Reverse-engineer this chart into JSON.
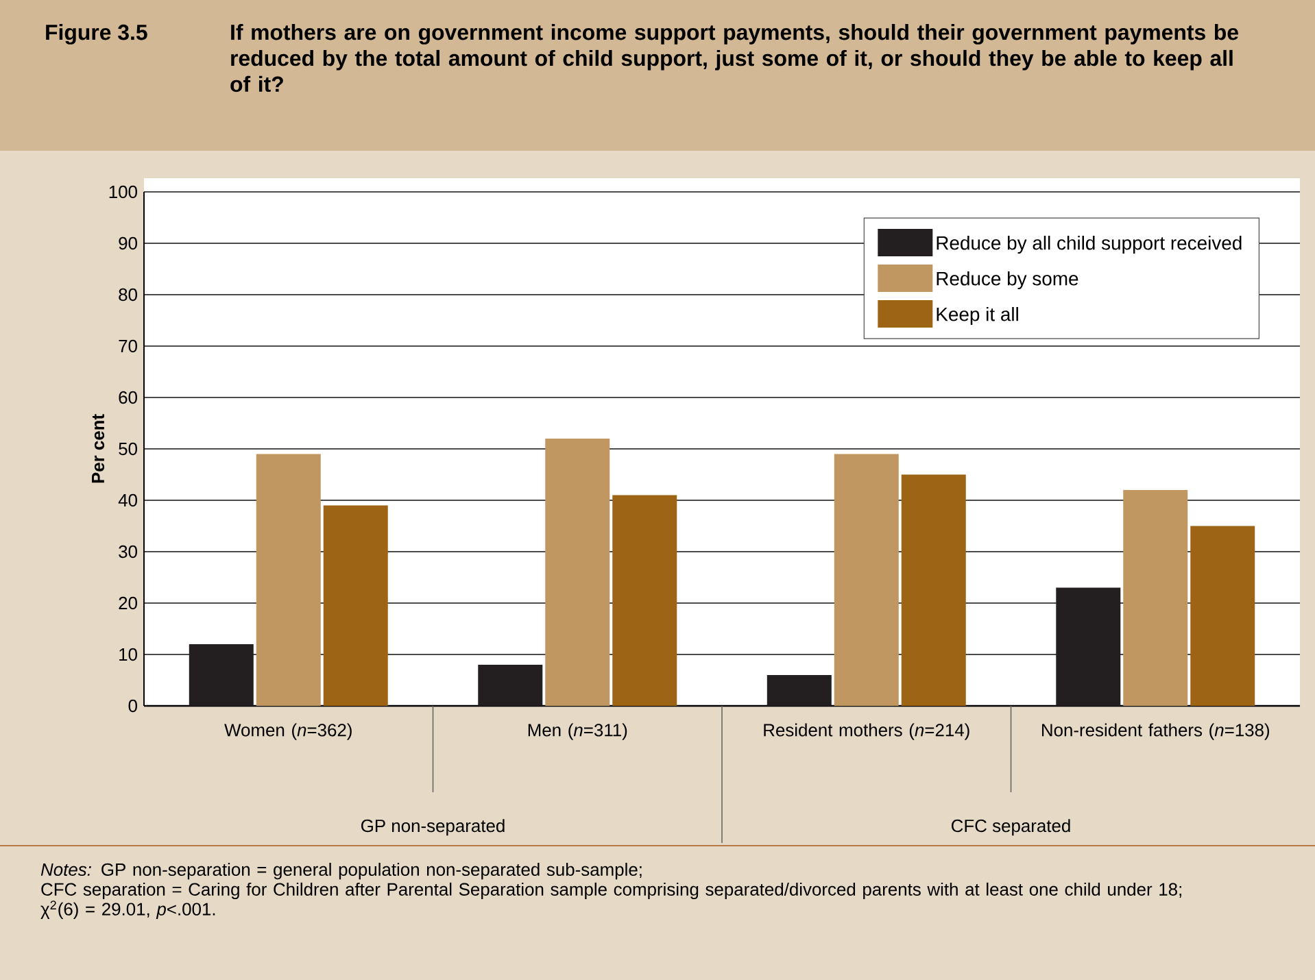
{
  "chart_data": {
    "type": "bar",
    "title": "Figure 3.5",
    "subtitle": "If mothers are on government income support payments, should their government payments be reduced by the total amount of child support, just some of it, or should they be able to keep all of it?",
    "ylabel": "Per cent",
    "categories": [
      "Women (*n*=362)",
      "Men (*n*=311)",
      "Resident mothers (*n*=214)",
      "Non-resident fathers (*n*=138)"
    ],
    "series": [
      {
        "name": "Reduce by all child support received",
        "color": "#231f20",
        "values": [
          12,
          8,
          6,
          23
        ]
      },
      {
        "name": "Reduce by some",
        "color": "#c19761",
        "values": [
          49,
          52,
          49,
          42
        ]
      },
      {
        "name": "Keep it all",
        "color": "#9e6415",
        "values": [
          39,
          41,
          45,
          35
        ]
      }
    ],
    "ylim": [
      0,
      100
    ],
    "yticks": [
      0,
      10,
      20,
      30,
      40,
      50,
      60,
      70,
      80,
      90,
      100
    ],
    "grid": "y",
    "legend": "top right",
    "annotations": [
      "GP non-separated",
      "CFC separated",
      "*Notes:* GP non-separation = general population non-separated sub-sample;",
      "CFC separation = Caring for Children after Parental Separation sample comprising separated/divorced parents with at least one child under 18;",
      "χ$^{2}$(6) = 29.01, *p*<.001."
    ]
  }
}
